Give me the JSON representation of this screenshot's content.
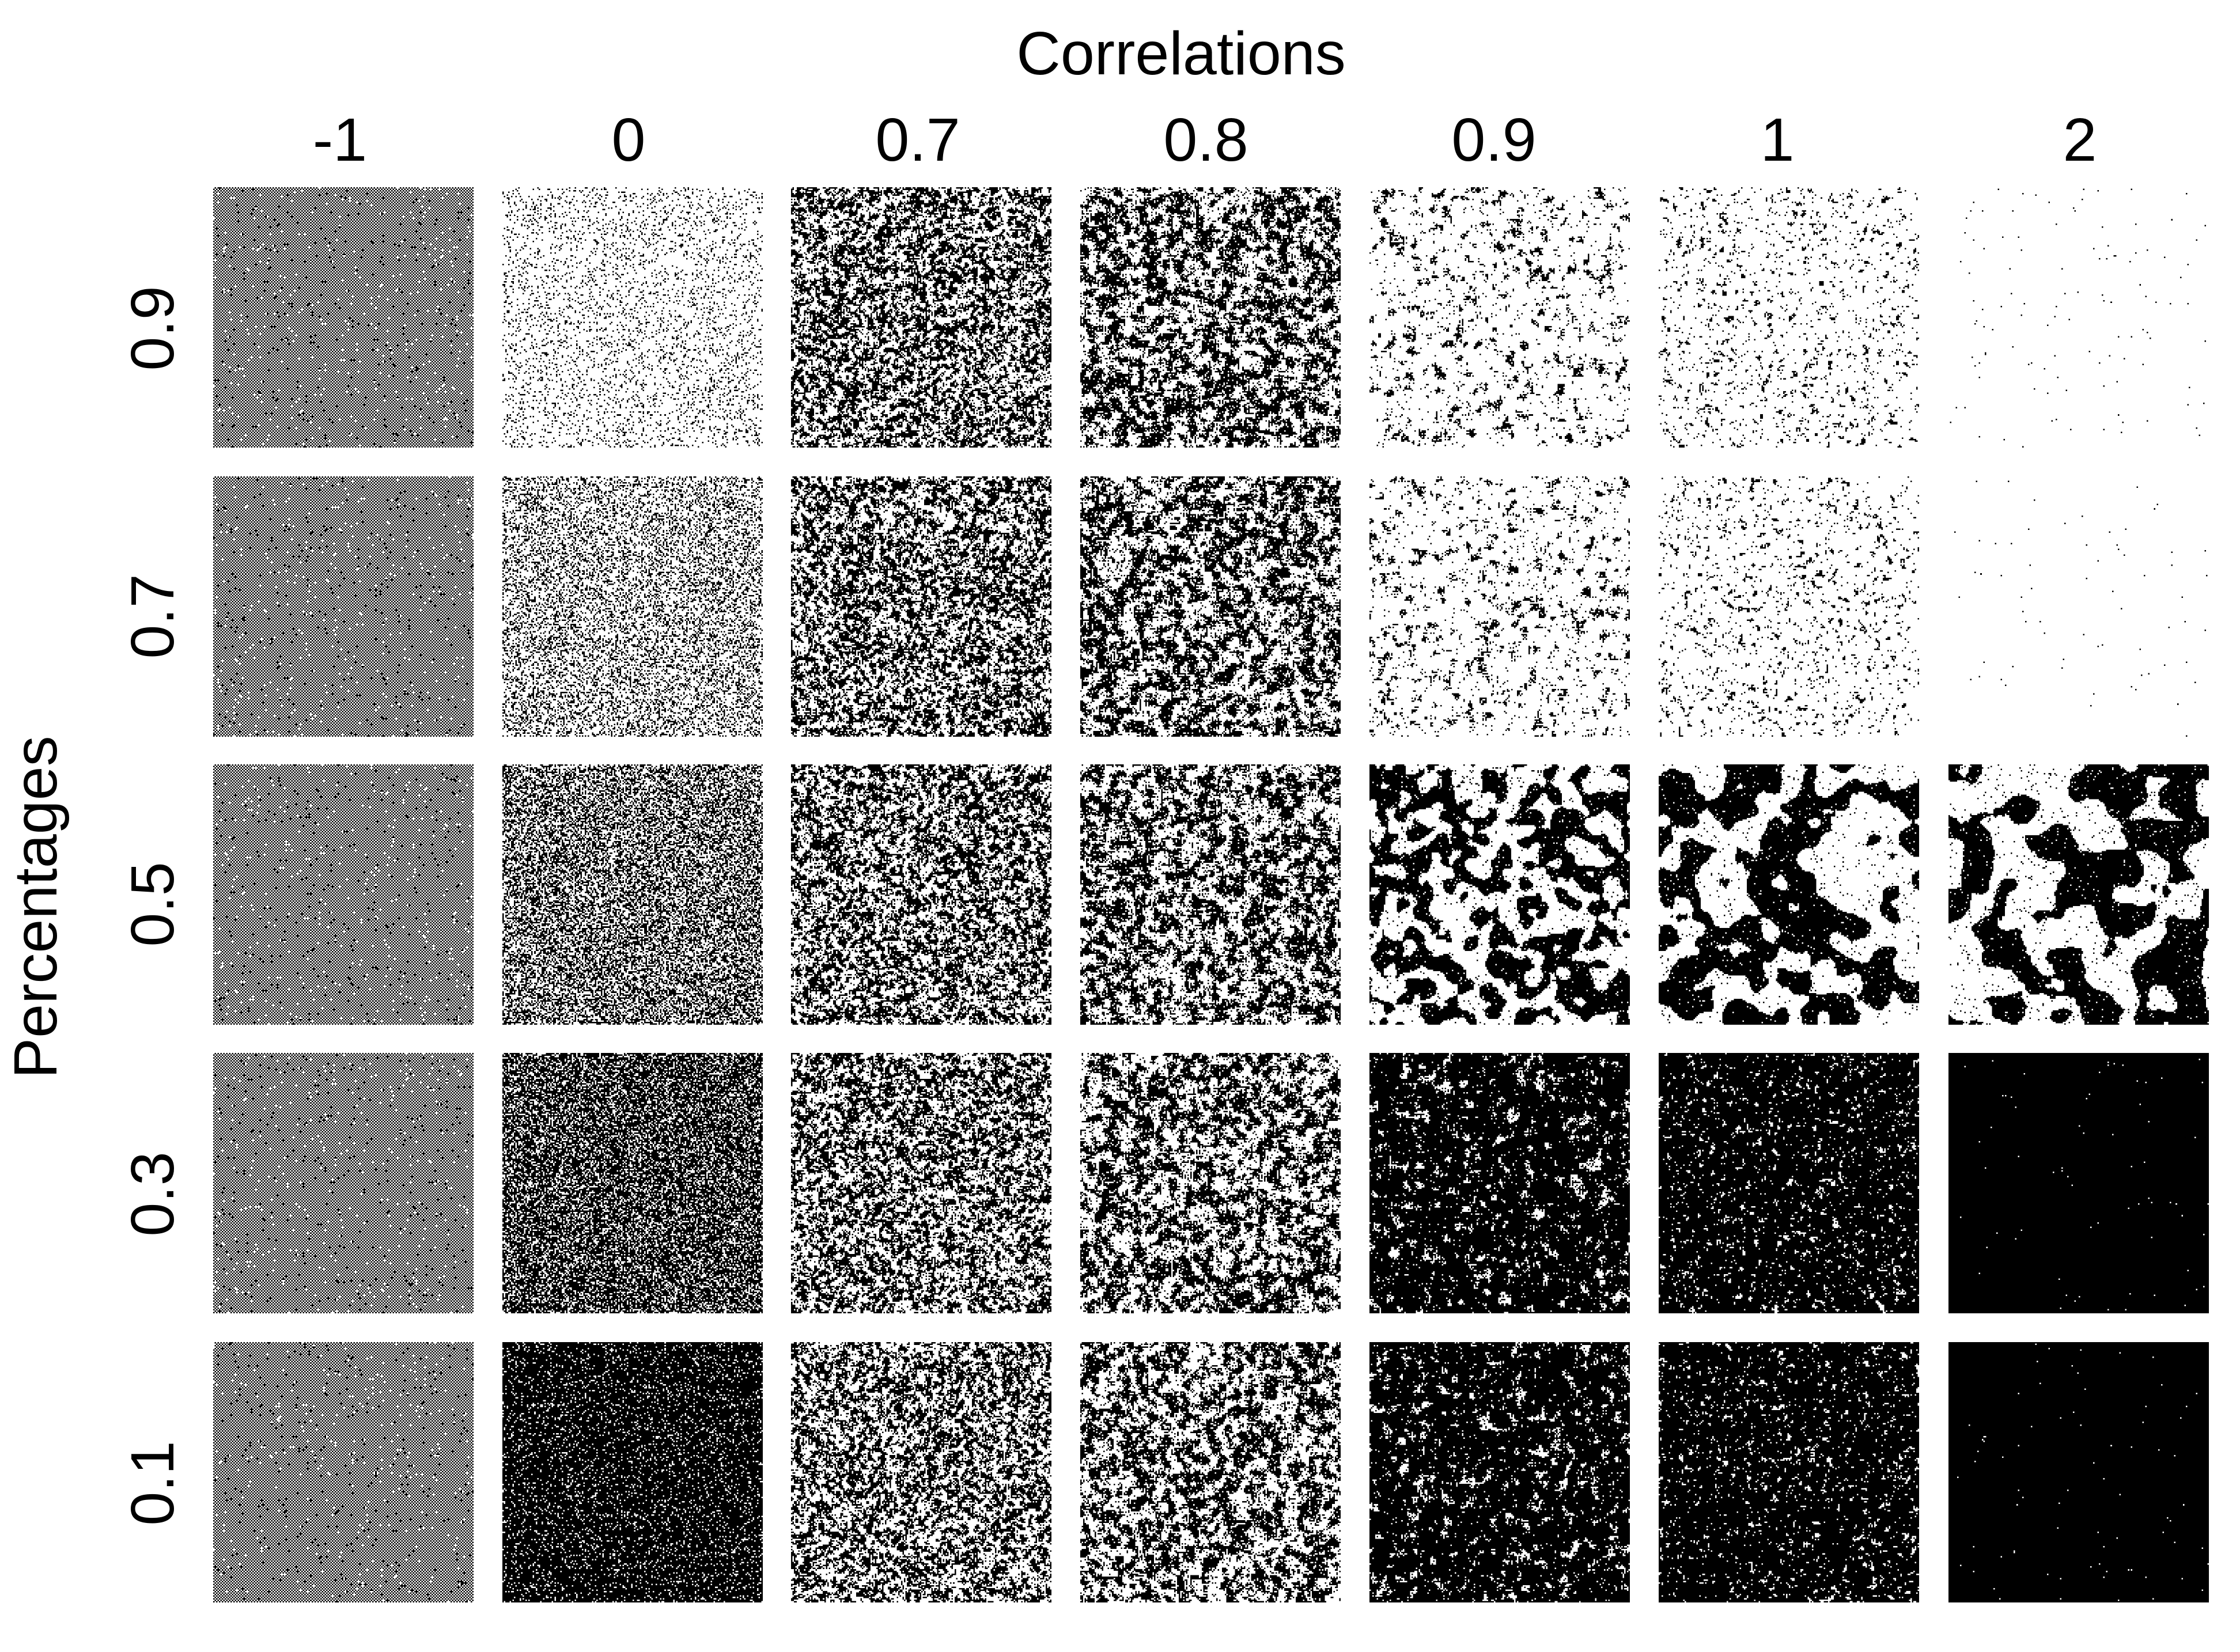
{
  "x_axis": {
    "title": "Correlations",
    "values": [
      "-1",
      "0",
      "0.7",
      "0.8",
      "0.9",
      "1",
      "2"
    ]
  },
  "y_axis": {
    "title": "Percentages",
    "values": [
      "0.9",
      "0.7",
      "0.5",
      "0.3",
      "0.1"
    ]
  },
  "panel": {
    "type": "binary-random-field-grid",
    "cell_colors": {
      "on": "#000000",
      "off": "#ffffff"
    },
    "rows": [
      {
        "percentage": "0.9",
        "cells": [
          {
            "correlation": "-1",
            "tone": "checker-gray",
            "black_fraction": 0.5,
            "blob": "none"
          },
          {
            "correlation": "0",
            "tone": "light-noise",
            "black_fraction": 0.12,
            "blob": "none"
          },
          {
            "correlation": "0.7",
            "tone": "speckle",
            "black_fraction": 0.5,
            "blob": "fine"
          },
          {
            "correlation": "0.8",
            "tone": "speckle",
            "black_fraction": 0.5,
            "blob": "medium"
          },
          {
            "correlation": "0.9",
            "tone": "sparse-blobs",
            "black_fraction": 0.12,
            "blob": "medium"
          },
          {
            "correlation": "1",
            "tone": "sparse-dots",
            "black_fraction": 0.08,
            "blob": "fine"
          },
          {
            "correlation": "2",
            "tone": "near-white",
            "black_fraction": 0.003,
            "blob": "none"
          }
        ]
      },
      {
        "percentage": "0.7",
        "cells": [
          {
            "correlation": "-1",
            "tone": "checker-gray",
            "black_fraction": 0.5,
            "blob": "none"
          },
          {
            "correlation": "0",
            "tone": "light-noise",
            "black_fraction": 0.3,
            "blob": "none"
          },
          {
            "correlation": "0.7",
            "tone": "speckle",
            "black_fraction": 0.5,
            "blob": "fine"
          },
          {
            "correlation": "0.8",
            "tone": "speckle",
            "black_fraction": 0.5,
            "blob": "medium"
          },
          {
            "correlation": "0.9",
            "tone": "sparse-blobs",
            "black_fraction": 0.12,
            "blob": "medium"
          },
          {
            "correlation": "1",
            "tone": "sparse-dots",
            "black_fraction": 0.08,
            "blob": "fine"
          },
          {
            "correlation": "2",
            "tone": "near-white",
            "black_fraction": 0.002,
            "blob": "none"
          }
        ]
      },
      {
        "percentage": "0.5",
        "cells": [
          {
            "correlation": "-1",
            "tone": "checker-gray",
            "black_fraction": 0.5,
            "blob": "none"
          },
          {
            "correlation": "0",
            "tone": "mid-noise",
            "black_fraction": 0.5,
            "blob": "none"
          },
          {
            "correlation": "0.7",
            "tone": "speckle",
            "black_fraction": 0.5,
            "blob": "fine"
          },
          {
            "correlation": "0.8",
            "tone": "speckle",
            "black_fraction": 0.5,
            "blob": "medium"
          },
          {
            "correlation": "0.9",
            "tone": "blobs",
            "black_fraction": 0.5,
            "blob": "large"
          },
          {
            "correlation": "1",
            "tone": "blobs",
            "black_fraction": 0.5,
            "blob": "xlarge"
          },
          {
            "correlation": "2",
            "tone": "blobs",
            "black_fraction": 0.5,
            "blob": "huge"
          }
        ]
      },
      {
        "percentage": "0.3",
        "cells": [
          {
            "correlation": "-1",
            "tone": "checker-gray",
            "black_fraction": 0.5,
            "blob": "none"
          },
          {
            "correlation": "0",
            "tone": "dark-noise",
            "black_fraction": 0.7,
            "blob": "none"
          },
          {
            "correlation": "0.7",
            "tone": "speckle",
            "black_fraction": 0.5,
            "blob": "fine"
          },
          {
            "correlation": "0.8",
            "tone": "speckle",
            "black_fraction": 0.5,
            "blob": "medium"
          },
          {
            "correlation": "0.9",
            "tone": "dark-blobs",
            "black_fraction": 0.88,
            "blob": "medium"
          },
          {
            "correlation": "1",
            "tone": "dark-dots",
            "black_fraction": 0.92,
            "blob": "fine"
          },
          {
            "correlation": "2",
            "tone": "near-black",
            "black_fraction": 0.998,
            "blob": "none"
          }
        ]
      },
      {
        "percentage": "0.1",
        "cells": [
          {
            "correlation": "-1",
            "tone": "checker-gray",
            "black_fraction": 0.5,
            "blob": "none"
          },
          {
            "correlation": "0",
            "tone": "dark-noise",
            "black_fraction": 0.88,
            "blob": "none"
          },
          {
            "correlation": "0.7",
            "tone": "speckle",
            "black_fraction": 0.5,
            "blob": "fine"
          },
          {
            "correlation": "0.8",
            "tone": "speckle",
            "black_fraction": 0.5,
            "blob": "medium"
          },
          {
            "correlation": "0.9",
            "tone": "dark-blobs",
            "black_fraction": 0.88,
            "blob": "medium"
          },
          {
            "correlation": "1",
            "tone": "dark-dots",
            "black_fraction": 0.92,
            "blob": "fine"
          },
          {
            "correlation": "2",
            "tone": "near-black",
            "black_fraction": 0.998,
            "blob": "none"
          }
        ]
      }
    ]
  }
}
